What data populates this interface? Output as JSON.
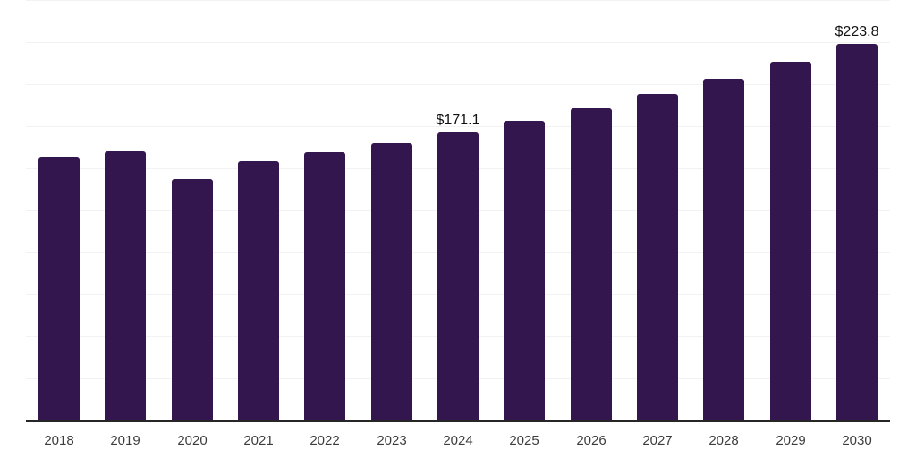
{
  "chart_data": {
    "type": "bar",
    "title": "",
    "xlabel": "",
    "ylabel": "",
    "categories": [
      "2018",
      "2019",
      "2020",
      "2021",
      "2022",
      "2023",
      "2024",
      "2025",
      "2026",
      "2027",
      "2028",
      "2029",
      "2030"
    ],
    "values": [
      156.5,
      160.0,
      143.7,
      154.5,
      159.5,
      165.0,
      171.1,
      178.3,
      185.7,
      194.2,
      203.1,
      213.4,
      223.8
    ],
    "data_labels": {
      "2024": "$171.1",
      "2030": "$223.8"
    },
    "ylim": [
      0,
      250
    ],
    "gridline_step": 25,
    "grid": "horizontal-only",
    "legend": "none",
    "y_axis_labels_visible": false,
    "colors": {
      "bar": "#34164f",
      "gridline": "#f2f2f2",
      "axis_line": "#262626",
      "tick_text": "#3c3c3c",
      "value_label_text": "#111111",
      "background": "#ffffff"
    }
  }
}
